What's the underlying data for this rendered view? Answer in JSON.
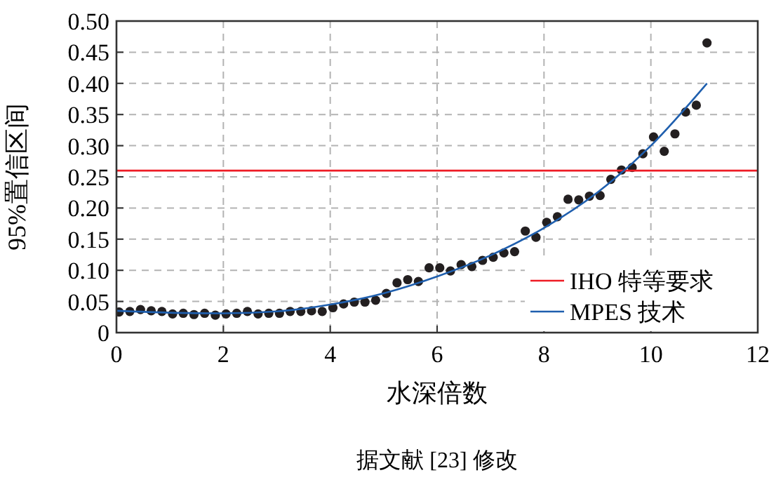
{
  "chart_data": {
    "type": "scatter",
    "xlabel": "水深倍数",
    "ylabel": "95%置信区间",
    "annotations": [
      "据文献 [23] 修改"
    ],
    "xlim": [
      0,
      12
    ],
    "xticks": [
      0,
      2,
      4,
      6,
      8,
      10,
      12
    ],
    "ylim": [
      0,
      0.5
    ],
    "yticks": [
      0,
      0.05,
      {
        "value": 0.1,
        "label": "0.10"
      },
      0.15,
      {
        "value": 0.2,
        "label": "0.20"
      },
      0.25,
      {
        "value": 0.3,
        "label": "0.30"
      },
      0.35,
      {
        "value": 0.4,
        "label": "0.40"
      },
      0.45,
      {
        "value": 0.5,
        "label": "0.50"
      }
    ],
    "grid": true,
    "legend": "bottom right",
    "marker": "circle",
    "series": [
      {
        "color": "#231f20",
        "x": [
          0.05,
          0.25,
          0.45,
          0.65,
          0.85,
          1.05,
          1.25,
          1.45,
          1.65,
          1.85,
          2.05,
          2.25,
          2.45,
          2.65,
          2.85,
          3.05,
          3.25,
          3.45,
          3.65,
          3.85,
          4.05,
          4.25,
          4.45,
          4.65,
          4.85,
          5.05,
          5.25,
          5.45,
          5.65,
          5.85,
          6.05,
          6.25,
          6.45,
          6.65,
          6.85,
          7.05,
          7.25,
          7.45,
          7.65,
          7.85,
          8.05,
          8.25,
          8.45,
          8.65,
          8.85,
          9.05,
          9.25,
          9.45,
          9.65,
          9.85,
          10.05,
          10.25,
          10.45,
          10.65,
          10.85,
          11.05
        ],
        "values": [
          0.033,
          0.034,
          0.037,
          0.035,
          0.034,
          0.03,
          0.031,
          0.029,
          0.031,
          0.028,
          0.03,
          0.031,
          0.034,
          0.03,
          0.031,
          0.031,
          0.034,
          0.034,
          0.035,
          0.034,
          0.04,
          0.046,
          0.049,
          0.049,
          0.052,
          0.063,
          0.08,
          0.085,
          0.082,
          0.104,
          0.104,
          0.099,
          0.109,
          0.106,
          0.116,
          0.121,
          0.128,
          0.13,
          0.163,
          0.153,
          0.177,
          0.186,
          0.214,
          0.213,
          0.219,
          0.22,
          0.246,
          0.261,
          0.265,
          0.287,
          0.314,
          0.291,
          0.319,
          0.354,
          0.365,
          0.465
        ]
      },
      {
        "type": "line",
        "name": "IHO 特等要求",
        "color": "#ee1c25",
        "x": [
          0,
          12
        ],
        "values": [
          0.26,
          0.26
        ],
        "marker": "none"
      },
      {
        "type": "line",
        "name": "MPES 技术",
        "color": "#1f5fae",
        "x": [
          0,
          1,
          2,
          3,
          4,
          5,
          6,
          7,
          8,
          9,
          10,
          11.05
        ],
        "values": [
          0.035,
          0.032,
          0.031,
          0.034,
          0.045,
          0.063,
          0.09,
          0.124,
          0.168,
          0.225,
          0.3,
          0.4
        ],
        "marker": "none"
      }
    ]
  }
}
